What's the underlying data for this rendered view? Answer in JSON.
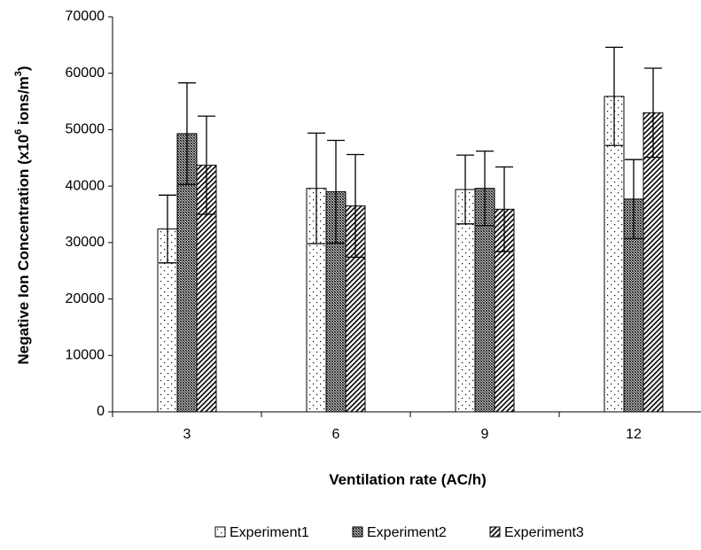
{
  "chart_data": {
    "type": "bar",
    "title": "",
    "xlabel": "Ventilation rate (AC/h)",
    "ylabel": {
      "prefix": "Negative Ion Concentration (x10",
      "sup1": "6",
      "middle": " ions/m",
      "sup2": "3",
      "suffix": ")"
    },
    "categories": [
      "3",
      "6",
      "9",
      "12"
    ],
    "ylim": [
      0,
      70000
    ],
    "yticks": [
      0,
      10000,
      20000,
      30000,
      40000,
      50000,
      60000,
      70000
    ],
    "ytick_labels": [
      "0",
      "10000",
      "20000",
      "30000",
      "40000",
      "50000",
      "60000",
      "70000"
    ],
    "grid": false,
    "legend_position": "bottom",
    "series": [
      {
        "name": "Experiment1",
        "pattern": "dots",
        "values": [
          32400,
          39600,
          39400,
          55900
        ],
        "errors": [
          6000,
          9800,
          6100,
          8700
        ]
      },
      {
        "name": "Experiment2",
        "pattern": "crosshatch",
        "values": [
          49300,
          39000,
          39600,
          37700
        ],
        "errors": [
          9000,
          9100,
          6600,
          7000
        ]
      },
      {
        "name": "Experiment3",
        "pattern": "diagonal",
        "values": [
          43700,
          36500,
          35900,
          53000
        ],
        "errors": [
          8700,
          9100,
          7500,
          7900
        ]
      }
    ]
  }
}
